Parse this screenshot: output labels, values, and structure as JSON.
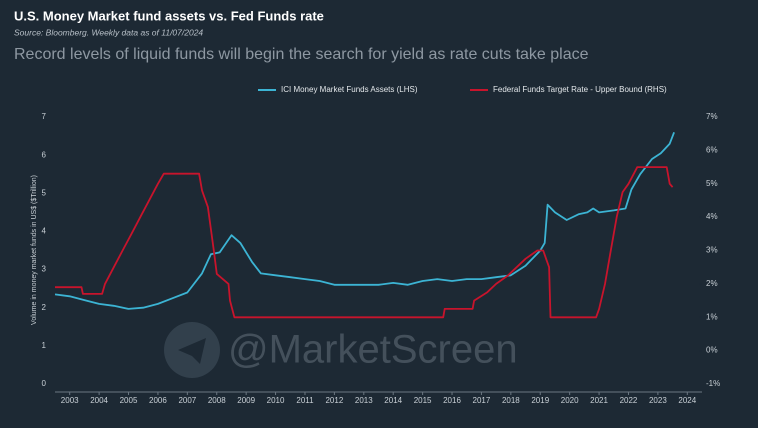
{
  "chart_data": {
    "type": "line",
    "title": "U.S. Money Market fund assets vs.  Fed Funds rate",
    "source": "Source: Bloomberg.  Weekly data as of 11/07/2024",
    "subtitle": "Record levels of liquid funds will begin the search for yield as rate cuts take place",
    "y_label": "Volume in money market funds in US$ ($Trillion)",
    "watermark": "@MarketScreen",
    "xlim": [
      2002.5,
      2024.5
    ],
    "xticks": [
      2003,
      2004,
      2005,
      2006,
      2007,
      2008,
      2009,
      2010,
      2011,
      2012,
      2013,
      2014,
      2015,
      2016,
      2017,
      2018,
      2019,
      2020,
      2021,
      2022,
      2023,
      2024
    ],
    "ylim": [
      0,
      7
    ],
    "yticks": [
      0,
      1,
      2,
      3,
      4,
      5,
      6,
      7
    ],
    "y2lim": [
      -1,
      7
    ],
    "y2ticks": [
      {
        "value": -1,
        "label": "-1%"
      },
      {
        "value": 0,
        "label": "0%"
      },
      {
        "value": 1,
        "label": "1%"
      },
      {
        "value": 2,
        "label": "2%"
      },
      {
        "value": 3,
        "label": "3%"
      },
      {
        "value": 4,
        "label": "4%"
      },
      {
        "value": 5,
        "label": "5%"
      },
      {
        "value": 6,
        "label": "6%"
      },
      {
        "value": 7,
        "label": "7%"
      }
    ],
    "grid": false,
    "legend": "top",
    "series": [
      {
        "name": "ICI Money Market Funds Assets (LHS)",
        "color": "#3cb4d4",
        "x": [
          2002.5,
          2003,
          2003.5,
          2004,
          2004.5,
          2005,
          2005.5,
          2006,
          2006.5,
          2007,
          2007.5,
          2007.8,
          2008.1,
          2008.5,
          2008.8,
          2009.2,
          2009.5,
          2010,
          2010.5,
          2011,
          2011.5,
          2012,
          2012.5,
          2013,
          2013.5,
          2014,
          2014.5,
          2015,
          2015.5,
          2016,
          2016.5,
          2017,
          2017.5,
          2018,
          2018.5,
          2019,
          2019.15,
          2019.25,
          2019.5,
          2019.9,
          2020.3,
          2020.6,
          2020.8,
          2021,
          2021.5,
          2021.9,
          2022.1,
          2022.4,
          2022.8,
          2023.1,
          2023.4,
          2023.55
        ],
        "values": [
          2.35,
          2.3,
          2.2,
          2.1,
          2.05,
          1.97,
          2.0,
          2.1,
          2.25,
          2.4,
          2.9,
          3.4,
          3.45,
          3.9,
          3.7,
          3.2,
          2.9,
          2.85,
          2.8,
          2.75,
          2.7,
          2.6,
          2.6,
          2.6,
          2.6,
          2.65,
          2.6,
          2.7,
          2.75,
          2.7,
          2.75,
          2.75,
          2.8,
          2.85,
          3.1,
          3.5,
          3.7,
          4.7,
          4.5,
          4.3,
          4.45,
          4.5,
          4.6,
          4.5,
          4.55,
          4.6,
          5.1,
          5.5,
          5.9,
          6.05,
          6.3,
          6.6
        ]
      },
      {
        "name": "Federal Funds Target Rate - Upper Bound (RHS)",
        "color": "#c8142c",
        "axis": "y2",
        "x": [
          2002.5,
          2003.4,
          2003.45,
          2004.1,
          2004.2,
          2004.5,
          2004.8,
          2005.1,
          2005.4,
          2005.7,
          2006.0,
          2006.2,
          2007.4,
          2007.5,
          2007.7,
          2007.9,
          2008.0,
          2008.4,
          2008.45,
          2008.6,
          2015.7,
          2015.75,
          2016.7,
          2016.75,
          2017.2,
          2017.5,
          2017.9,
          2018.2,
          2018.5,
          2018.9,
          2019.1,
          2019.2,
          2019.3,
          2019.35,
          2020.9,
          2021.0,
          2021.2,
          2021.4,
          2021.6,
          2021.8,
          2022.0,
          2022.3,
          2023.3,
          2023.4,
          2023.5
        ],
        "values": [
          1.9,
          1.9,
          1.7,
          1.7,
          2.0,
          2.5,
          3.0,
          3.5,
          4.0,
          4.5,
          5.0,
          5.3,
          5.3,
          4.8,
          4.3,
          3.0,
          2.3,
          2.0,
          1.5,
          1.0,
          1.0,
          1.25,
          1.25,
          1.5,
          1.75,
          2.0,
          2.25,
          2.5,
          2.75,
          3.0,
          3.0,
          2.75,
          2.5,
          1.0,
          1.0,
          1.25,
          2.0,
          3.0,
          4.0,
          4.75,
          5.0,
          5.5,
          5.5,
          5.0,
          4.9
        ]
      }
    ]
  }
}
